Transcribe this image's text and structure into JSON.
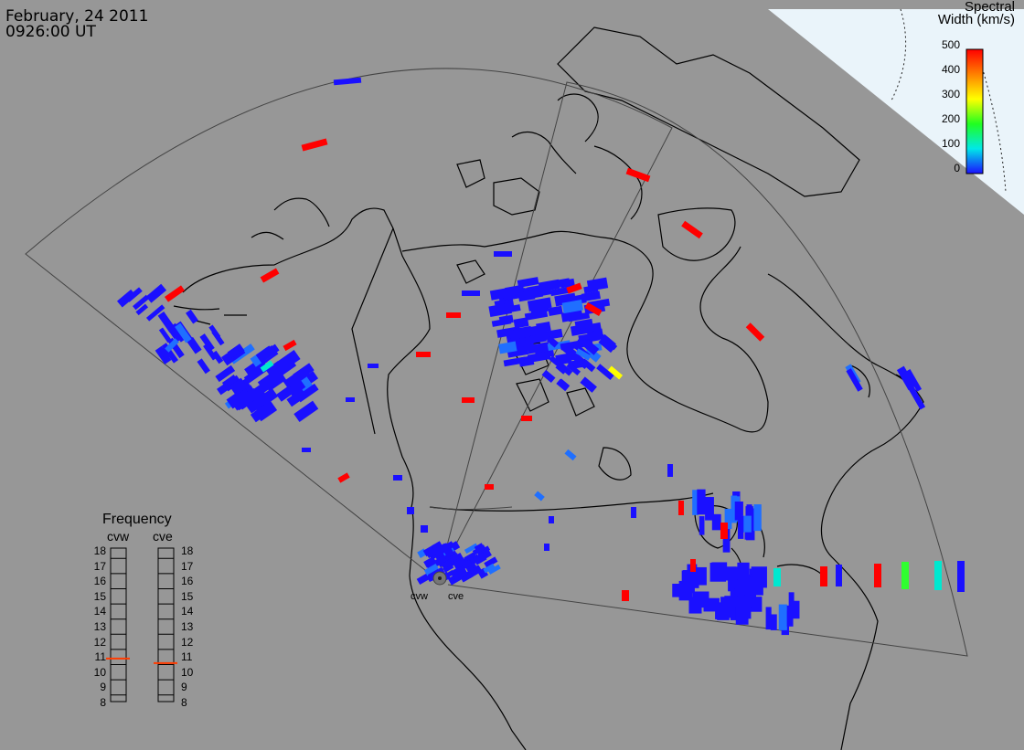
{
  "header": {
    "date": "February, 24 2011",
    "time": "0926:00 UT"
  },
  "colorbar": {
    "title_line1": "Spectral",
    "title_line2": "Width (km/s)",
    "ticks": [
      "500",
      "400",
      "300",
      "200",
      "100",
      "0"
    ]
  },
  "frequency_panel": {
    "title": "Frequency",
    "columns": [
      "cvw",
      "cve"
    ],
    "scale": [
      "18",
      "17",
      "16",
      "15",
      "14",
      "13",
      "12",
      "11",
      "10",
      "9",
      "8"
    ],
    "cvw_current": 10.9,
    "cve_current": 10.6,
    "indicator_color": "#ff3b00"
  },
  "radars": [
    {
      "code": "cvw"
    },
    {
      "code": "cve"
    }
  ],
  "colors": {
    "background": "#979797",
    "dayside": "#eaf4fa",
    "low": "#1a10ff",
    "mid_low": "#1f6fff",
    "cyan": "#00e8d0",
    "green": "#30ff30",
    "yellow": "#ffff00",
    "high": "#ff0000"
  }
}
